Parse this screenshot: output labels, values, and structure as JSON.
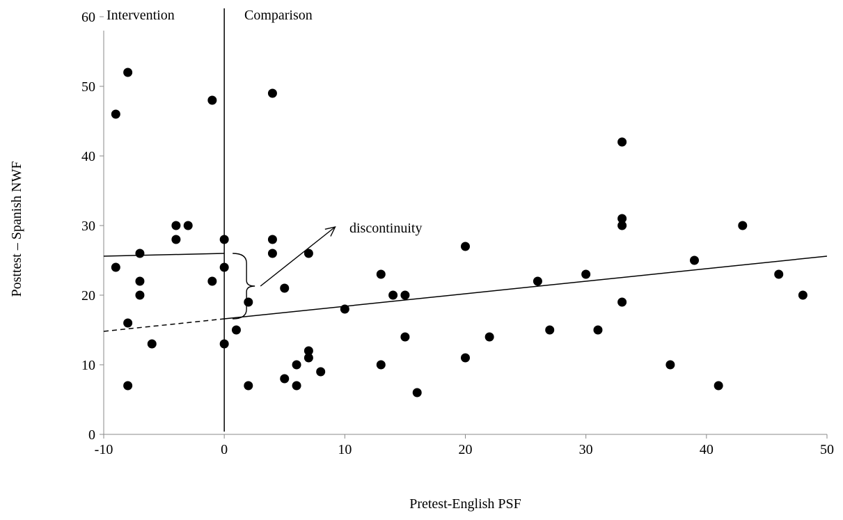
{
  "chart_data": {
    "type": "scatter",
    "title": "",
    "xlabel": "Pretest-English PSF",
    "ylabel": "Posttest – Spanish NWF",
    "xlim": [
      -10,
      50
    ],
    "ylim": [
      0,
      60
    ],
    "x_ticks": [
      -10,
      0,
      10,
      20,
      30,
      40,
      50
    ],
    "y_ticks": [
      0,
      10,
      20,
      30,
      40,
      50,
      60
    ],
    "grid": false,
    "cutoff_x": 0,
    "region_labels": {
      "left": "Intervention",
      "right": "Comparison"
    },
    "annotation": "discontinuity",
    "fit_lines": {
      "intervention": {
        "x": [
          -10,
          0
        ],
        "y": [
          25.6,
          26.0
        ]
      },
      "comparison": {
        "x": [
          0,
          50
        ],
        "y": [
          16.6,
          25.6
        ]
      },
      "comparison_extrapolated": {
        "x": [
          -10,
          0
        ],
        "y": [
          14.8,
          16.6
        ]
      }
    },
    "points": [
      [
        -9,
        46
      ],
      [
        -9,
        24
      ],
      [
        -8,
        52
      ],
      [
        -8,
        16
      ],
      [
        -8,
        7
      ],
      [
        -7,
        26
      ],
      [
        -7,
        22
      ],
      [
        -7,
        20
      ],
      [
        -6,
        13
      ],
      [
        -4,
        30
      ],
      [
        -4,
        28
      ],
      [
        -3,
        30
      ],
      [
        -1,
        48
      ],
      [
        -1,
        22
      ],
      [
        0,
        28
      ],
      [
        0,
        24
      ],
      [
        0,
        13
      ],
      [
        1,
        15
      ],
      [
        2,
        19
      ],
      [
        2,
        7
      ],
      [
        4,
        49
      ],
      [
        4,
        28
      ],
      [
        4,
        26
      ],
      [
        5,
        21
      ],
      [
        5,
        8
      ],
      [
        6,
        10
      ],
      [
        6,
        7
      ],
      [
        7,
        26
      ],
      [
        7,
        12
      ],
      [
        7,
        11
      ],
      [
        8,
        9
      ],
      [
        10,
        18
      ],
      [
        13,
        23
      ],
      [
        13,
        10
      ],
      [
        14,
        20
      ],
      [
        15,
        20
      ],
      [
        15,
        14
      ],
      [
        16,
        6
      ],
      [
        20,
        27
      ],
      [
        20,
        11
      ],
      [
        22,
        14
      ],
      [
        26,
        22
      ],
      [
        27,
        15
      ],
      [
        30,
        23
      ],
      [
        31,
        15
      ],
      [
        33,
        42
      ],
      [
        33,
        31
      ],
      [
        33,
        30
      ],
      [
        33,
        19
      ],
      [
        37,
        10
      ],
      [
        39,
        25
      ],
      [
        41,
        7
      ],
      [
        43,
        30
      ],
      [
        46,
        23
      ],
      [
        48,
        20
      ]
    ]
  }
}
